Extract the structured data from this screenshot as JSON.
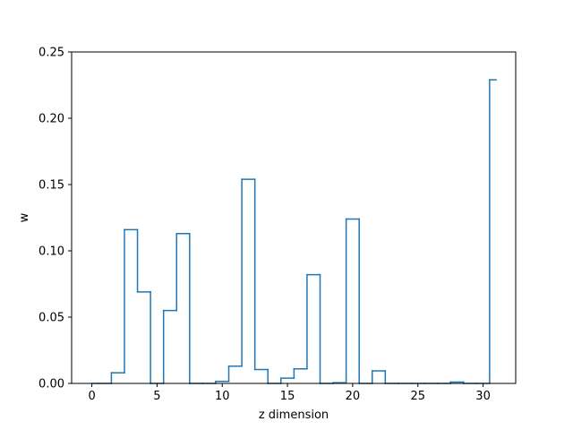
{
  "colors": {
    "series": "#1f77b4",
    "axes": "#000000",
    "background": "#ffffff"
  },
  "chart_data": {
    "type": "line",
    "style": "step (mid)",
    "title": "",
    "xlabel": "z dimension",
    "ylabel": "w",
    "xlim": [
      -1.55,
      32.5
    ],
    "ylim": [
      0.0,
      0.25
    ],
    "xticks": [
      0,
      5,
      10,
      15,
      20,
      25,
      30
    ],
    "xtick_labels": [
      "0",
      "5",
      "10",
      "15",
      "20",
      "25",
      "30"
    ],
    "yticks": [
      0.0,
      0.05,
      0.1,
      0.15,
      0.2,
      0.25
    ],
    "ytick_labels": [
      "0.00",
      "0.05",
      "0.10",
      "0.15",
      "0.20",
      "0.25"
    ],
    "grid": false,
    "legend": "none",
    "x": [
      0,
      1,
      2,
      3,
      4,
      5,
      6,
      7,
      8,
      9,
      10,
      11,
      12,
      13,
      14,
      15,
      16,
      17,
      18,
      19,
      20,
      21,
      22,
      23,
      24,
      25,
      26,
      27,
      28,
      29,
      30,
      31
    ],
    "values": [
      0.0,
      0.0,
      0.008,
      0.116,
      0.069,
      0.0,
      0.055,
      0.113,
      0.0,
      0.0,
      0.0015,
      0.013,
      0.154,
      0.0105,
      0.0,
      0.004,
      0.011,
      0.082,
      0.0,
      0.0005,
      0.124,
      0.0,
      0.0095,
      0.0,
      0.0,
      0.0,
      0.0,
      0.0,
      0.001,
      0.0,
      0.0,
      0.229
    ]
  }
}
